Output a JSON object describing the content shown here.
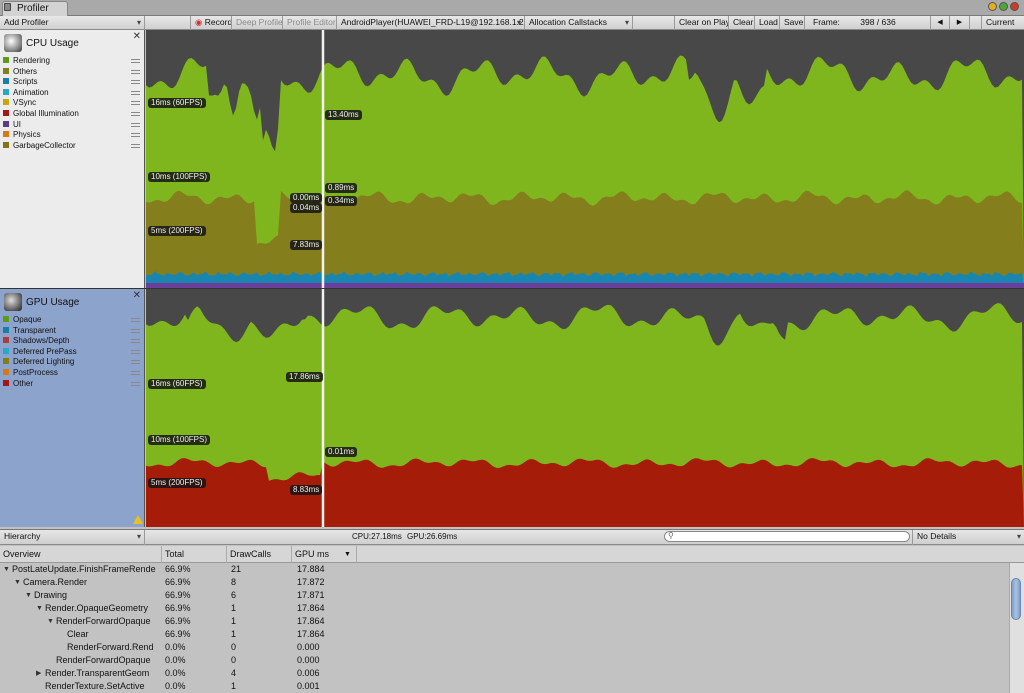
{
  "window": {
    "tab_title": "Profiler"
  },
  "toolbar": {
    "add_profiler": "Add Profiler",
    "record": "Record",
    "deep_profile": "Deep Profile",
    "profile_editor": "Profile Editor",
    "target": "AndroidPlayer(HUAWEI_FRD-L19@192.168.1.227)",
    "allocation": "Allocation Callstacks",
    "clear_on_play": "Clear on Play",
    "clear": "Clear",
    "load": "Load",
    "save": "Save",
    "frame_label": "Frame:",
    "frame_value": "398 / 636",
    "prev": "◀",
    "next": "▶",
    "current": "Current"
  },
  "cpu": {
    "title": "CPU Usage",
    "legend": [
      {
        "name": "Rendering",
        "color": "#5c9a1a"
      },
      {
        "name": "Others",
        "color": "#7f7f1c"
      },
      {
        "name": "Scripts",
        "color": "#1a7fa6"
      },
      {
        "name": "Animation",
        "color": "#2aa6c9"
      },
      {
        "name": "VSync",
        "color": "#c6a800"
      },
      {
        "name": "Global Illumination",
        "color": "#a01818"
      },
      {
        "name": "UI",
        "color": "#5a3b8a"
      },
      {
        "name": "Physics",
        "color": "#d87a10"
      },
      {
        "name": "GarbageCollector",
        "color": "#86701c"
      }
    ],
    "labels": {
      "fps60": "16ms (60FPS)",
      "fps100": "10ms (100FPS)",
      "fps200": "5ms (200FPS)"
    },
    "selection_values": [
      "13.40ms",
      "0.89ms",
      "0.00ms",
      "0.34ms",
      "0.04ms",
      "7.83ms"
    ]
  },
  "gpu": {
    "title": "GPU Usage",
    "legend": [
      {
        "name": "Opaque",
        "color": "#5c9a1a"
      },
      {
        "name": "Transparent",
        "color": "#1a7fa6"
      },
      {
        "name": "Shadows/Depth",
        "color": "#b23a3a"
      },
      {
        "name": "Deferred PrePass",
        "color": "#2aa6c9"
      },
      {
        "name": "Deferred Lighting",
        "color": "#7f7f1c"
      },
      {
        "name": "PostProcess",
        "color": "#d87a10"
      },
      {
        "name": "Other",
        "color": "#a01818"
      }
    ],
    "labels": {
      "fps60": "16ms (60FPS)",
      "fps100": "10ms (100FPS)",
      "fps200": "5ms (200FPS)"
    },
    "selection_values": [
      "17.86ms",
      "0.01ms",
      "8.83ms"
    ]
  },
  "details_bar": {
    "view": "Hierarchy",
    "cpu_time": "CPU:27.18ms",
    "gpu_time": "GPU:26.69ms",
    "detail_mode": "No Details"
  },
  "table": {
    "columns": [
      "Overview",
      "Total",
      "DrawCalls",
      "GPU ms"
    ],
    "rows": [
      {
        "indent": 0,
        "expanded": true,
        "name": "PostLateUpdate.FinishFrameRende",
        "total": "66.9%",
        "drawcalls": "21",
        "gpu": "17.884"
      },
      {
        "indent": 1,
        "expanded": true,
        "name": "Camera.Render",
        "total": "66.9%",
        "drawcalls": "8",
        "gpu": "17.872"
      },
      {
        "indent": 2,
        "expanded": true,
        "name": "Drawing",
        "total": "66.9%",
        "drawcalls": "6",
        "gpu": "17.871"
      },
      {
        "indent": 3,
        "expanded": true,
        "name": "Render.OpaqueGeometry",
        "total": "66.9%",
        "drawcalls": "1",
        "gpu": "17.864"
      },
      {
        "indent": 4,
        "expanded": true,
        "name": "RenderForwardOpaque",
        "total": "66.9%",
        "drawcalls": "1",
        "gpu": "17.864"
      },
      {
        "indent": 5,
        "expanded": null,
        "name": "Clear",
        "total": "66.9%",
        "drawcalls": "1",
        "gpu": "17.864"
      },
      {
        "indent": 5,
        "expanded": null,
        "name": "RenderForward.Rend",
        "total": "0.0%",
        "drawcalls": "0",
        "gpu": "0.000"
      },
      {
        "indent": 4,
        "expanded": null,
        "name": "RenderForwardOpaque",
        "total": "0.0%",
        "drawcalls": "0",
        "gpu": "0.000"
      },
      {
        "indent": 3,
        "expanded": false,
        "name": "Render.TransparentGeom",
        "total": "0.0%",
        "drawcalls": "4",
        "gpu": "0.006"
      },
      {
        "indent": 3,
        "expanded": null,
        "name": "RenderTexture.SetActive",
        "total": "0.0%",
        "drawcalls": "1",
        "gpu": "0.001"
      }
    ]
  },
  "colors": {
    "cpu_bg": "#484848",
    "green": "#7fb61d",
    "olive": "#857e1c",
    "blue": "#1a86b0",
    "purple": "#6a3f9a",
    "red": "#a51d08"
  }
}
